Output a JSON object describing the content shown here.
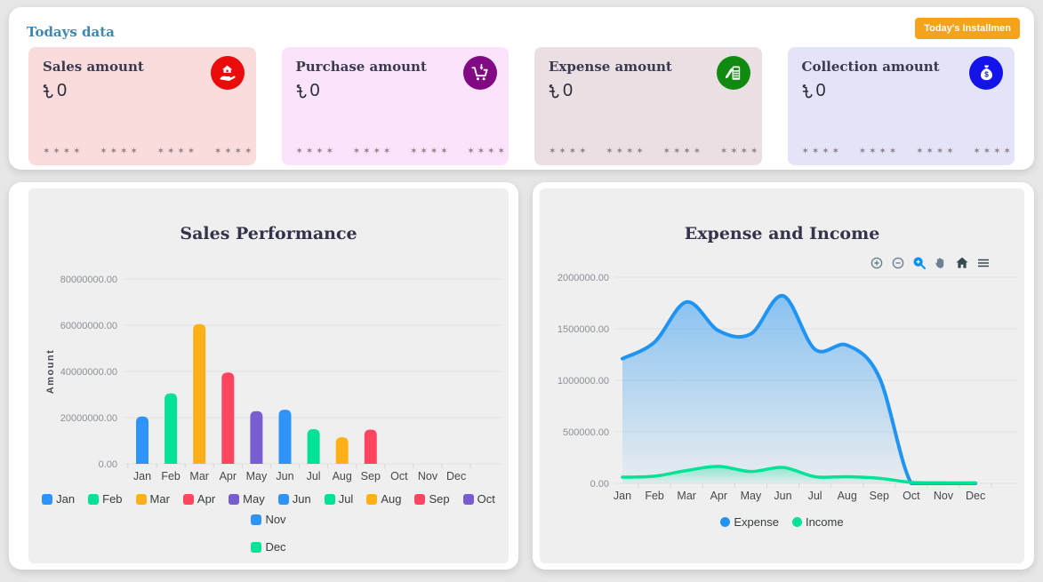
{
  "page": {
    "background": "#e7e7e7",
    "panel_background": "#ffffff",
    "chart_card_background": "#efefef",
    "accent_orange": "#f5a31a",
    "header_title_color": "#3d87b0"
  },
  "header": {
    "title": "Todays data",
    "button_label": "Today's Installmen"
  },
  "cards": [
    {
      "title": "Sales amount",
      "currency_symbol": "৳",
      "value": "0",
      "icon": "hand-holding-house",
      "bg": "#fadcdc",
      "icon_bg": "#ea0b0b",
      "mask": "✶✶✶✶ ✶✶✶✶ ✶✶✶✶ ✶✶✶✶"
    },
    {
      "title": "Purchase amount",
      "currency_symbol": "৳",
      "value": "0",
      "icon": "cart-arrow-down",
      "bg": "#fbe3fb",
      "icon_bg": "#820984",
      "mask": "✶✶✶✶ ✶✶✶✶ ✶✶✶✶ ✶✶✶✶"
    },
    {
      "title": "Expense amount",
      "currency_symbol": "৳",
      "value": "0",
      "icon": "calculator-pen",
      "bg": "#eae0e4",
      "icon_bg": "#118a11",
      "mask": "✶✶✶✶ ✶✶✶✶ ✶✶✶✶ ✶✶✶✶"
    },
    {
      "title": "Collection amount",
      "currency_symbol": "৳",
      "value": "0",
      "icon": "money-bag",
      "bg": "#e4e4f8",
      "icon_bg": "#1414ea",
      "mask": "✶✶✶✶ ✶✶✶✶ ✶✶✶✶ ✶✶✶✶"
    }
  ],
  "chart_data": [
    {
      "type": "bar",
      "title": "Sales Performance",
      "xlabel": "",
      "ylabel": "Amount",
      "categories": [
        "Jan",
        "Feb",
        "Mar",
        "Apr",
        "May",
        "Jun",
        "Jul",
        "Aug",
        "Sep",
        "Oct",
        "Nov",
        "Dec"
      ],
      "values": [
        20500000,
        30500000,
        60500000,
        39500000,
        22800000,
        23400000,
        15000000,
        11500000,
        14800000,
        0,
        0,
        0
      ],
      "ylim": [
        0,
        80000000
      ],
      "yticks": [
        "0.00",
        "20000000.00",
        "40000000.00",
        "60000000.00",
        "80000000.00"
      ],
      "palette": [
        "#2E93FA",
        "#00E396",
        "#FEB019",
        "#FF4560",
        "#775DD0"
      ],
      "grid": true,
      "legend_position": "bottom",
      "legend_marker": "rounded-square"
    },
    {
      "type": "area",
      "title": "Expense and Income",
      "xlabel": "",
      "ylabel": "",
      "categories": [
        "Jan",
        "Feb",
        "Mar",
        "Apr",
        "May",
        "Jun",
        "Jul",
        "Aug",
        "Sep",
        "Oct",
        "Nov",
        "Dec"
      ],
      "series": [
        {
          "name": "Expense",
          "color": "#2094f3",
          "values": [
            1210000,
            1370000,
            1760000,
            1480000,
            1450000,
            1820000,
            1300000,
            1340000,
            1030000,
            0,
            0,
            0
          ]
        },
        {
          "name": "Income",
          "color": "#00E396",
          "values": [
            60000,
            70000,
            125000,
            165000,
            115000,
            155000,
            65000,
            65000,
            50000,
            10000,
            5000,
            5000
          ]
        }
      ],
      "ylim": [
        0,
        2000000
      ],
      "yticks": [
        "0.00",
        "500000.00",
        "1000000.00",
        "1500000.00",
        "2000000.00"
      ],
      "grid": true,
      "legend_position": "bottom",
      "legend_marker": "circle",
      "toolbar": [
        "zoom-in",
        "zoom-out",
        "selection-zoom",
        "pan",
        "home",
        "menu"
      ],
      "toolbar_active": "selection-zoom"
    }
  ]
}
